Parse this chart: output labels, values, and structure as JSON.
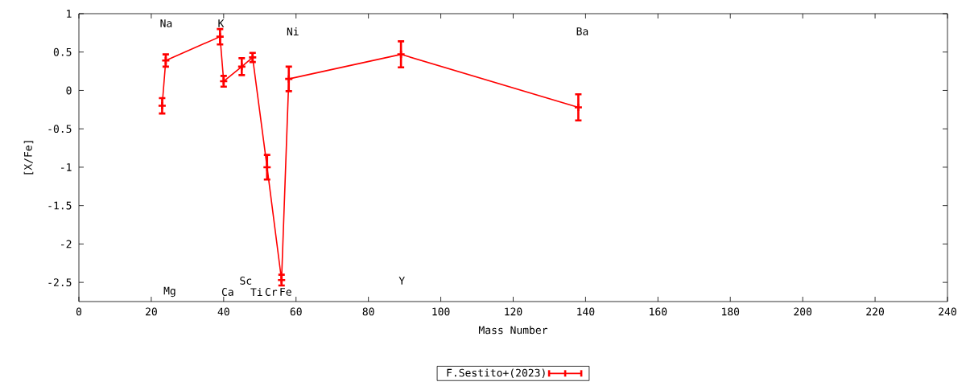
{
  "chart_data": {
    "type": "line",
    "xlabel": "Mass Number",
    "ylabel": "[X/Fe]",
    "xlim": [
      0,
      240
    ],
    "xticks": [
      0,
      20,
      40,
      60,
      80,
      100,
      120,
      140,
      160,
      180,
      200,
      220,
      240
    ],
    "ylim": [
      -2.75,
      1
    ],
    "yticks": [
      -2.5,
      -2,
      -1.5,
      -1,
      -0.5,
      0,
      0.5,
      1
    ],
    "x": [
      23,
      24,
      39,
      40,
      45,
      48,
      52,
      56,
      58,
      89,
      138
    ],
    "series": [
      {
        "name": "F.Sestito+(2023)",
        "color": "#ff0000",
        "values": [
          -0.2,
          0.39,
          0.7,
          0.12,
          0.31,
          0.43,
          -1.0,
          -2.47,
          0.15,
          0.47,
          -0.22
        ],
        "errors": [
          0.1,
          0.08,
          0.1,
          0.07,
          0.11,
          0.06,
          0.16,
          0.07,
          0.16,
          0.17,
          0.17
        ]
      }
    ],
    "marker": "cross",
    "line_style": "solid",
    "legend": "bottom",
    "annotations": [
      "Na",
      "Mg",
      "K",
      "Ca",
      "Sc",
      "Ti",
      "Cr",
      "Fe",
      "Ni",
      "Y",
      "Ba"
    ]
  }
}
